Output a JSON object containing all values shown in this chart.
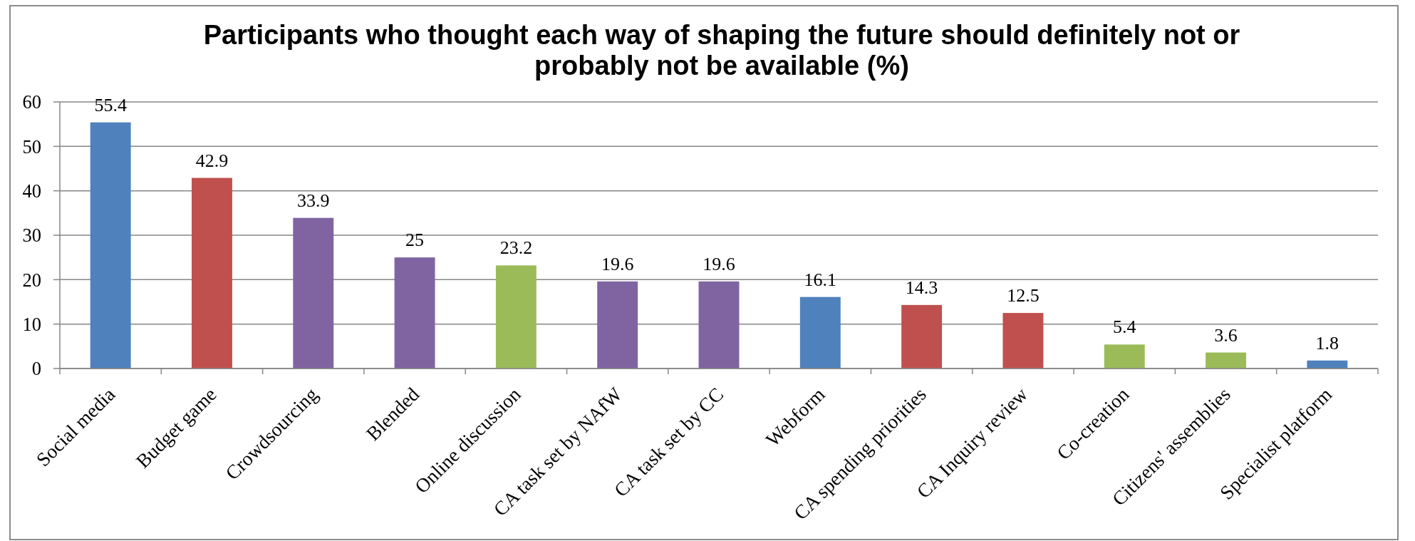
{
  "chart_data": {
    "type": "bar",
    "title": "Participants who thought each way of shaping the future should definitely not or probably not be available (%)",
    "categories": [
      "Social media",
      "Budget game",
      "Crowdsourcing",
      "Blended",
      "Online discussion",
      "CA task set by NAfW",
      "CA task set by CC",
      "Webform",
      "CA spending priorities",
      "CA Inquiry review",
      "Co-creation",
      "Citizens' assemblies",
      "Specialist platform"
    ],
    "values": [
      55.4,
      42.9,
      33.9,
      25,
      23.2,
      19.6,
      19.6,
      16.1,
      14.3,
      12.5,
      5.4,
      3.6,
      1.8
    ],
    "colors": [
      "#4f81bd",
      "#c0504d",
      "#8064a2",
      "#8064a2",
      "#9bbb59",
      "#8064a2",
      "#8064a2",
      "#4f81bd",
      "#c0504d",
      "#c0504d",
      "#9bbb59",
      "#9bbb59",
      "#4f81bd"
    ],
    "ylim": [
      0,
      60
    ],
    "yticks": [
      0,
      10,
      20,
      30,
      40,
      50,
      60
    ],
    "grid": "y",
    "data_labels": true
  }
}
